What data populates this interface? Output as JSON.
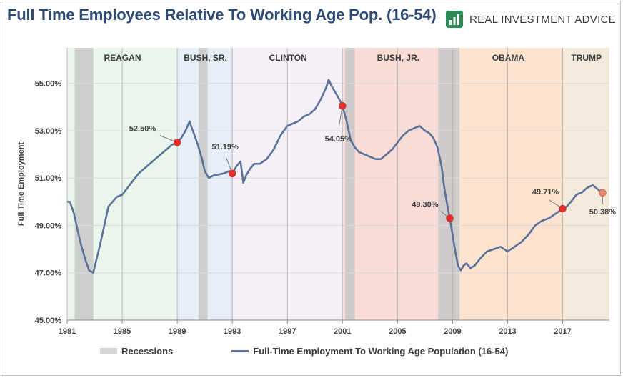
{
  "title": "Full Time Employees Relative To Working Age Pop. (16-54)",
  "brand": {
    "name": "REAL INVESTMENT ADVICE",
    "icon": "chart-logo-icon",
    "color": "#2e8b57"
  },
  "legend": {
    "recessions": "Recessions",
    "series": "Full-Time Employment To Working Age Population (16-54)"
  },
  "colors": {
    "line": "#5a7199",
    "marker": "#e0312b",
    "recession": "#c8c8c8",
    "title": "#2e4a73"
  },
  "chart_data": {
    "type": "line",
    "ylabel": "Full Time Employment",
    "ylim": [
      45,
      56.5
    ],
    "xlim": [
      1981,
      2020.4
    ],
    "x_ticks": [
      "1981",
      "1985",
      "1989",
      "1993",
      "1997",
      "2001",
      "2005",
      "2009",
      "2013",
      "2017"
    ],
    "x_tick_values": [
      1981,
      1985,
      1989,
      1993,
      1997,
      2001,
      2005,
      2009,
      2013,
      2017
    ],
    "y_ticks": [
      "45.00%",
      "47.00%",
      "49.00%",
      "51.00%",
      "53.00%",
      "55.00%"
    ],
    "y_tick_values": [
      45,
      47,
      49,
      51,
      53,
      55
    ],
    "presidencies": [
      {
        "name": "REAGAN",
        "start": 1981.0,
        "end": 1989.05,
        "color": "#eaf5ec"
      },
      {
        "name": "BUSH, SR.",
        "start": 1989.05,
        "end": 1993.05,
        "color": "#e6eef8"
      },
      {
        "name": "CLINTON",
        "start": 1993.05,
        "end": 2001.05,
        "color": "#f5f0f6"
      },
      {
        "name": "BUSH, JR.",
        "start": 2001.05,
        "end": 2009.05,
        "color": "#fadcd7"
      },
      {
        "name": "OBAMA",
        "start": 2009.05,
        "end": 2017.05,
        "color": "#fbe3cf"
      },
      {
        "name": "TRUMP",
        "start": 2017.05,
        "end": 2020.4,
        "color": "#f3eadb"
      }
    ],
    "recessions": [
      {
        "start": 1981.55,
        "end": 1982.9
      },
      {
        "start": 1990.55,
        "end": 1991.2
      },
      {
        "start": 2001.2,
        "end": 2001.9
      },
      {
        "start": 2007.95,
        "end": 2009.5
      }
    ],
    "series": [
      {
        "name": "Full-Time Employment To Working Age Population (16-54)",
        "x": [
          1981.0,
          1981.2,
          1981.5,
          1981.8,
          1982.0,
          1982.3,
          1982.6,
          1982.9,
          1983.1,
          1983.4,
          1983.7,
          1984.0,
          1984.3,
          1984.6,
          1985.0,
          1985.4,
          1985.8,
          1986.2,
          1986.6,
          1987.0,
          1987.4,
          1987.8,
          1988.2,
          1988.6,
          1989.0,
          1989.3,
          1989.6,
          1989.9,
          1990.0,
          1990.2,
          1990.5,
          1990.8,
          1991.0,
          1991.3,
          1991.6,
          1992.0,
          1992.4,
          1992.8,
          1993.0,
          1993.3,
          1993.6,
          1993.8,
          1994.0,
          1994.3,
          1994.6,
          1995.0,
          1995.5,
          1996.0,
          1996.5,
          1997.0,
          1997.4,
          1997.8,
          1998.2,
          1998.6,
          1999.0,
          1999.4,
          1999.8,
          2000.0,
          2000.2,
          2000.5,
          2000.8,
          2001.0,
          2001.3,
          2001.6,
          2001.9,
          2002.2,
          2002.6,
          2003.0,
          2003.4,
          2003.8,
          2004.2,
          2004.6,
          2005.0,
          2005.4,
          2005.8,
          2006.2,
          2006.6,
          2007.0,
          2007.3,
          2007.6,
          2007.9,
          2008.2,
          2008.4,
          2008.6,
          2008.8,
          2009.0,
          2009.2,
          2009.4,
          2009.6,
          2009.8,
          2010.0,
          2010.3,
          2010.6,
          2011.0,
          2011.5,
          2012.0,
          2012.5,
          2013.0,
          2013.5,
          2014.0,
          2014.5,
          2015.0,
          2015.5,
          2016.0,
          2016.5,
          2017.0,
          2017.3,
          2017.6,
          2018.0,
          2018.4,
          2018.8,
          2019.2,
          2019.6,
          2019.9
        ],
        "y": [
          50.0,
          50.0,
          49.5,
          48.7,
          48.2,
          47.6,
          47.1,
          47.0,
          47.5,
          48.2,
          49.0,
          49.8,
          50.0,
          50.2,
          50.3,
          50.6,
          50.9,
          51.2,
          51.4,
          51.6,
          51.8,
          52.0,
          52.2,
          52.4,
          52.5,
          52.7,
          53.0,
          53.4,
          53.2,
          52.9,
          52.4,
          51.8,
          51.3,
          51.0,
          51.1,
          51.15,
          51.2,
          51.3,
          51.19,
          51.5,
          51.7,
          50.8,
          51.1,
          51.4,
          51.6,
          51.6,
          51.8,
          52.2,
          52.8,
          53.2,
          53.3,
          53.4,
          53.6,
          53.7,
          53.9,
          54.3,
          54.8,
          55.15,
          54.9,
          54.6,
          54.3,
          54.05,
          53.4,
          52.6,
          52.3,
          52.1,
          52.0,
          51.9,
          51.8,
          51.8,
          52.0,
          52.2,
          52.5,
          52.8,
          53.0,
          53.1,
          53.2,
          53.0,
          52.9,
          52.7,
          52.3,
          51.5,
          50.6,
          49.9,
          49.3,
          48.6,
          47.9,
          47.3,
          47.1,
          47.3,
          47.4,
          47.2,
          47.3,
          47.6,
          47.9,
          48.0,
          48.1,
          47.9,
          48.1,
          48.3,
          48.6,
          49.0,
          49.2,
          49.3,
          49.5,
          49.71,
          49.8,
          50.0,
          50.3,
          50.4,
          50.6,
          50.7,
          50.5,
          50.38
        ]
      }
    ],
    "annotations": [
      {
        "x": 1989.0,
        "y": 52.5,
        "label": "52.50%",
        "dot_color": "#e0312b"
      },
      {
        "x": 1993.0,
        "y": 51.19,
        "label": "51.19%",
        "dot_color": "#e0312b"
      },
      {
        "x": 2001.0,
        "y": 54.05,
        "label": "54.05%",
        "dot_color": "#e0312b"
      },
      {
        "x": 2008.8,
        "y": 49.3,
        "label": "49.30%",
        "dot_color": "#e0312b"
      },
      {
        "x": 2017.0,
        "y": 49.71,
        "label": "49.71%",
        "dot_color": "#e0312b"
      },
      {
        "x": 2019.9,
        "y": 50.38,
        "label": "50.38%",
        "dot_color": "#e0886a"
      }
    ]
  }
}
